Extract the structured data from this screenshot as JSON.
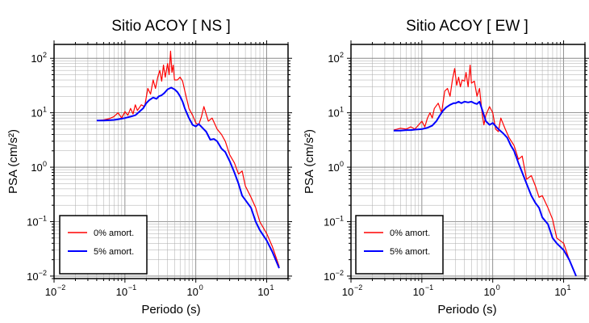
{
  "chart_data": [
    {
      "type": "line",
      "title": "Sitio ACOY [ NS ]",
      "xlabel": "Periodo (s)",
      "ylabel": "PSA (cm/s²)",
      "xscale": "log",
      "yscale": "log",
      "xlim": [
        0.01,
        20
      ],
      "ylim": [
        0.009,
        180
      ],
      "grid": true,
      "legend_position": "bottom-left",
      "series": [
        {
          "name": "0% amort.",
          "color": "#ff0000",
          "x": [
            0.04,
            0.05,
            0.06,
            0.07,
            0.08,
            0.09,
            0.1,
            0.11,
            0.12,
            0.13,
            0.14,
            0.15,
            0.17,
            0.19,
            0.21,
            0.23,
            0.25,
            0.27,
            0.29,
            0.31,
            0.33,
            0.35,
            0.37,
            0.4,
            0.42,
            0.44,
            0.46,
            0.48,
            0.5,
            0.55,
            0.6,
            0.65,
            0.7,
            0.8,
            0.9,
            1.0,
            1.1,
            1.2,
            1.3,
            1.5,
            1.7,
            2.0,
            2.3,
            2.6,
            3.0,
            3.5,
            4.0,
            4.5,
            5.0,
            6.0,
            7.0,
            8.0,
            10.0,
            12.0,
            15.0
          ],
          "y": [
            7.2,
            7.4,
            7.8,
            8.5,
            10.0,
            8.0,
            10.5,
            9.0,
            12.0,
            9.5,
            14.0,
            11.0,
            14.0,
            13.0,
            28.0,
            22.0,
            40.0,
            28.0,
            45.0,
            60.0,
            38.0,
            75.0,
            45.0,
            80.0,
            50.0,
            135.0,
            55.0,
            75.0,
            40.0,
            40.0,
            45.0,
            38.0,
            25.0,
            12.0,
            9.0,
            6.5,
            6.0,
            8.5,
            13.0,
            7.0,
            8.0,
            5.0,
            4.0,
            3.0,
            1.7,
            1.2,
            0.75,
            0.85,
            0.45,
            0.28,
            0.18,
            0.1,
            0.06,
            0.035,
            0.015
          ]
        },
        {
          "name": "5% amort.",
          "color": "#0000ff",
          "x": [
            0.04,
            0.05,
            0.06,
            0.07,
            0.08,
            0.1,
            0.12,
            0.14,
            0.16,
            0.18,
            0.2,
            0.22,
            0.25,
            0.28,
            0.3,
            0.33,
            0.36,
            0.4,
            0.45,
            0.5,
            0.55,
            0.6,
            0.65,
            0.7,
            0.8,
            0.9,
            1.0,
            1.1,
            1.2,
            1.4,
            1.6,
            1.8,
            2.0,
            2.3,
            2.6,
            3.0,
            3.5,
            4.0,
            4.5,
            5.0,
            6.0,
            7.0,
            8.0,
            10.0,
            12.0,
            15.0
          ],
          "y": [
            7.2,
            7.2,
            7.3,
            7.4,
            7.6,
            8.0,
            8.5,
            9.0,
            10.5,
            12.0,
            15.0,
            17.0,
            19.0,
            18.0,
            20.0,
            21.0,
            23.0,
            27.0,
            29.0,
            27.0,
            24.0,
            20.0,
            16.0,
            12.0,
            8.0,
            6.0,
            5.6,
            6.2,
            5.5,
            4.5,
            3.2,
            3.3,
            3.0,
            2.2,
            1.9,
            1.3,
            0.8,
            0.5,
            0.3,
            0.25,
            0.18,
            0.1,
            0.07,
            0.045,
            0.028,
            0.014
          ]
        }
      ],
      "x_ticks": [
        {
          "value": 0.01,
          "base": "10",
          "exp": "−2"
        },
        {
          "value": 0.1,
          "base": "10",
          "exp": "−1"
        },
        {
          "value": 1,
          "base": "10",
          "exp": "0"
        },
        {
          "value": 10,
          "base": "10",
          "exp": "1"
        }
      ],
      "y_ticks": [
        {
          "value": 0.01,
          "base": "10",
          "exp": "−2"
        },
        {
          "value": 0.1,
          "base": "10",
          "exp": "−1"
        },
        {
          "value": 1,
          "base": "10",
          "exp": "0"
        },
        {
          "value": 10,
          "base": "10",
          "exp": "1"
        },
        {
          "value": 100,
          "base": "10",
          "exp": "2"
        }
      ]
    },
    {
      "type": "line",
      "title": "Sitio ACOY [ EW ]",
      "xlabel": "Periodo (s)",
      "ylabel": "PSA (cm/s²)",
      "xscale": "log",
      "yscale": "log",
      "xlim": [
        0.01,
        20
      ],
      "ylim": [
        0.009,
        180
      ],
      "grid": true,
      "legend_position": "bottom-left",
      "series": [
        {
          "name": "0% amort.",
          "color": "#ff0000",
          "x": [
            0.04,
            0.05,
            0.06,
            0.07,
            0.08,
            0.09,
            0.1,
            0.11,
            0.12,
            0.13,
            0.14,
            0.15,
            0.17,
            0.19,
            0.21,
            0.23,
            0.25,
            0.27,
            0.29,
            0.31,
            0.33,
            0.35,
            0.37,
            0.4,
            0.42,
            0.45,
            0.48,
            0.5,
            0.55,
            0.6,
            0.65,
            0.7,
            0.75,
            0.8,
            0.9,
            1.0,
            1.1,
            1.2,
            1.3,
            1.5,
            1.7,
            2.0,
            2.3,
            2.6,
            3.0,
            3.5,
            4.0,
            4.5,
            5.0,
            6.0,
            7.0,
            8.0,
            10.0,
            12.0,
            15.0
          ],
          "y": [
            4.8,
            5.2,
            5.0,
            5.5,
            5.0,
            6.0,
            7.0,
            5.5,
            8.0,
            10.0,
            8.0,
            12.0,
            15.0,
            10.0,
            25.0,
            28.0,
            20.0,
            40.0,
            65.0,
            32.0,
            45.0,
            30.0,
            40.0,
            38.0,
            55.0,
            30.0,
            75.0,
            35.0,
            38.0,
            20.0,
            28.0,
            11.0,
            6.0,
            9.0,
            13.0,
            10.0,
            5.0,
            4.5,
            8.0,
            5.0,
            3.5,
            2.5,
            1.4,
            1.6,
            0.6,
            0.7,
            0.45,
            0.28,
            0.3,
            0.18,
            0.11,
            0.05,
            0.04,
            0.02,
            0.01
          ]
        },
        {
          "name": "5% amort.",
          "color": "#0000ff",
          "x": [
            0.04,
            0.05,
            0.06,
            0.07,
            0.08,
            0.1,
            0.12,
            0.14,
            0.16,
            0.18,
            0.2,
            0.22,
            0.25,
            0.28,
            0.3,
            0.33,
            0.36,
            0.4,
            0.45,
            0.5,
            0.55,
            0.6,
            0.65,
            0.7,
            0.8,
            0.9,
            1.0,
            1.2,
            1.4,
            1.6,
            1.8,
            2.0,
            2.3,
            2.6,
            3.0,
            3.5,
            4.0,
            4.5,
            5.0,
            6.0,
            7.0,
            8.0,
            10.0,
            12.0,
            15.0
          ],
          "y": [
            4.7,
            4.7,
            4.8,
            4.8,
            4.9,
            5.0,
            5.3,
            5.8,
            7.0,
            9.0,
            11.0,
            12.5,
            14.0,
            15.0,
            15.0,
            16.0,
            15.0,
            16.0,
            15.5,
            16.0,
            15.0,
            14.5,
            16.0,
            12.0,
            7.0,
            6.0,
            6.5,
            5.0,
            4.2,
            3.5,
            2.5,
            2.0,
            1.2,
            0.8,
            0.5,
            0.3,
            0.22,
            0.18,
            0.12,
            0.09,
            0.05,
            0.04,
            0.03,
            0.02,
            0.01
          ]
        }
      ],
      "x_ticks": [
        {
          "value": 0.01,
          "base": "10",
          "exp": "−2"
        },
        {
          "value": 0.1,
          "base": "10",
          "exp": "−1"
        },
        {
          "value": 1,
          "base": "10",
          "exp": "0"
        },
        {
          "value": 10,
          "base": "10",
          "exp": "1"
        }
      ],
      "y_ticks": [
        {
          "value": 0.01,
          "base": "10",
          "exp": "−2"
        },
        {
          "value": 0.1,
          "base": "10",
          "exp": "−1"
        },
        {
          "value": 1,
          "base": "10",
          "exp": "0"
        },
        {
          "value": 10,
          "base": "10",
          "exp": "1"
        },
        {
          "value": 100,
          "base": "10",
          "exp": "2"
        }
      ]
    }
  ]
}
